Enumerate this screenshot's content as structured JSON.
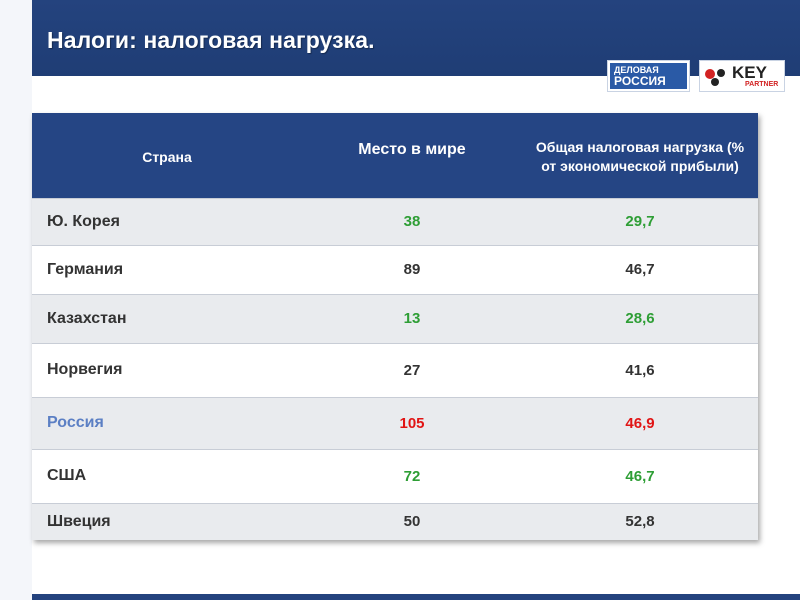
{
  "title": "Налоги: налоговая нагрузка.",
  "logos": {
    "delovaya_line1": "ДЕЛОВАЯ",
    "delovaya_line2": "РОССИЯ",
    "key_line1": "KEY",
    "key_line2": "PARTNER"
  },
  "table": {
    "headers": {
      "country": "Страна",
      "rank": "Место в мире",
      "load_line1": "Общая налоговая нагрузка (%",
      "load_line2": "от экономической прибыли)"
    },
    "rows": [
      {
        "country": "Ю. Корея",
        "rank": "38",
        "load": "29,7",
        "color": "#2e9e35"
      },
      {
        "country": "Германия",
        "rank": "89",
        "load": "46,7",
        "color": "#333333"
      },
      {
        "country": "Казахстан",
        "rank": "13",
        "load": "28,6",
        "color": "#2e9e35"
      },
      {
        "country": "Норвегия",
        "rank": "27",
        "load": "41,6",
        "color": "#333333"
      },
      {
        "country": "Россия",
        "rank": "105",
        "load": "46,9",
        "color": "#e11414",
        "country_color": "#5b7fc4"
      },
      {
        "country": "США",
        "rank": "72",
        "load": "46,7",
        "color": "#2e9e35"
      },
      {
        "country": "Швеция",
        "rank": "50",
        "load": "52,8",
        "color": "#333333"
      }
    ]
  },
  "colors": {
    "header_bg": "#254584",
    "green": "#2e9e35",
    "red": "#e11414",
    "highlight_country": "#5b7fc4"
  }
}
